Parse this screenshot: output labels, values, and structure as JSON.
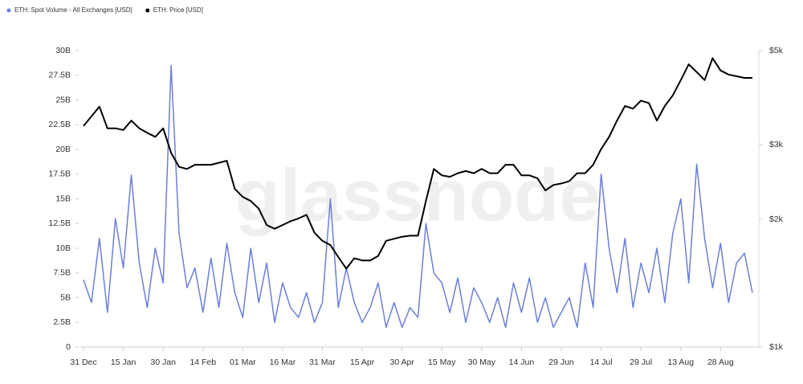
{
  "chart_data": {
    "type": "line",
    "watermark": "glassnode",
    "categories": [
      "31 Dec",
      null,
      null,
      null,
      null,
      "15 Jan",
      null,
      null,
      null,
      null,
      "30 Jan",
      null,
      null,
      null,
      null,
      "14 Feb",
      null,
      null,
      null,
      null,
      "01 Mar",
      null,
      null,
      null,
      null,
      "16 Mar",
      null,
      null,
      null,
      null,
      "31 Mar",
      null,
      null,
      null,
      null,
      "15 Apr",
      null,
      null,
      null,
      null,
      "30 Apr",
      null,
      null,
      null,
      null,
      "15 May",
      null,
      null,
      null,
      null,
      "30 May",
      null,
      null,
      null,
      null,
      "14 Jun",
      null,
      null,
      null,
      null,
      "29 Jun",
      null,
      null,
      null,
      null,
      "14 Jul",
      null,
      null,
      null,
      null,
      "29 Jul",
      null,
      null,
      null,
      null,
      "13 Aug",
      null,
      null,
      null,
      null,
      "28 Aug",
      null,
      null,
      null,
      null
    ],
    "series": [
      {
        "name": "ETH: Spot Volume - All Exchanges [USD]",
        "color": "#6b7fd7",
        "axis": "y",
        "values": [
          6.8,
          4.5,
          11.0,
          3.5,
          13.0,
          8.0,
          17.4,
          8.5,
          4.0,
          10.0,
          6.5,
          28.5,
          11.5,
          6.0,
          8.0,
          3.5,
          9.0,
          4.0,
          10.5,
          5.5,
          3.0,
          10.0,
          4.5,
          8.5,
          2.5,
          6.5,
          4.0,
          3.0,
          5.5,
          2.5,
          4.5,
          15.0,
          4.0,
          8.0,
          4.5,
          2.5,
          4.0,
          6.5,
          2.0,
          4.5,
          2.0,
          4.0,
          3.0,
          12.5,
          7.5,
          6.5,
          3.5,
          7.0,
          2.5,
          6.0,
          4.5,
          2.5,
          5.0,
          2.0,
          6.5,
          3.5,
          7.0,
          2.5,
          5.0,
          2.0,
          3.5,
          5.0,
          2.0,
          8.5,
          4.0,
          17.5,
          10.0,
          5.5,
          11.0,
          4.0,
          8.5,
          5.5,
          10.0,
          4.5,
          11.5,
          15.0,
          6.5,
          18.5,
          11.0,
          6.0,
          10.5,
          4.5,
          8.5,
          9.5,
          5.5
        ]
      },
      {
        "name": "ETH: Price [USD]",
        "color": "#000000",
        "axis": "y2",
        "values": [
          3320,
          3500,
          3690,
          3280,
          3280,
          3250,
          3420,
          3280,
          3200,
          3130,
          3280,
          2870,
          2660,
          2630,
          2690,
          2690,
          2690,
          2720,
          2750,
          2360,
          2260,
          2210,
          2120,
          1940,
          1900,
          1940,
          1980,
          2010,
          2050,
          1860,
          1780,
          1740,
          1630,
          1530,
          1620,
          1600,
          1600,
          1640,
          1780,
          1800,
          1820,
          1830,
          1830,
          2210,
          2630,
          2540,
          2520,
          2570,
          2600,
          2570,
          2630,
          2570,
          2570,
          2690,
          2690,
          2540,
          2540,
          2500,
          2340,
          2410,
          2430,
          2460,
          2570,
          2570,
          2690,
          2930,
          3130,
          3420,
          3700,
          3650,
          3810,
          3760,
          3420,
          3700,
          3920,
          4260,
          4640,
          4450,
          4260,
          4800,
          4490,
          4390,
          4350,
          4310,
          4310
        ]
      }
    ],
    "ylim": [
      0,
      30
    ],
    "yticks": [
      0,
      {
        "value": 2.5,
        "label": "2.5B"
      },
      {
        "value": 5,
        "label": "5B"
      },
      {
        "value": 7.5,
        "label": "7.5B"
      },
      {
        "value": 10,
        "label": "10B"
      },
      {
        "value": 12.5,
        "label": "12.5B"
      },
      {
        "value": 15,
        "label": "15B"
      },
      {
        "value": 17.5,
        "label": "17.5B"
      },
      {
        "value": 20,
        "label": "20B"
      },
      {
        "value": 22.5,
        "label": "22.5B"
      },
      {
        "value": 25,
        "label": "25B"
      },
      {
        "value": 27.5,
        "label": "27.5B"
      },
      {
        "value": 30,
        "label": "30B"
      }
    ],
    "y2lim": [
      1000,
      5000
    ],
    "y2log": true,
    "y2ticks": [
      {
        "value": 1000,
        "label": "$1k"
      },
      {
        "value": 2000,
        "label": "$2k"
      },
      {
        "value": 3000,
        "label": "$3k"
      },
      {
        "value": 5000,
        "label": "$5k"
      }
    ],
    "legend": "top-left"
  }
}
